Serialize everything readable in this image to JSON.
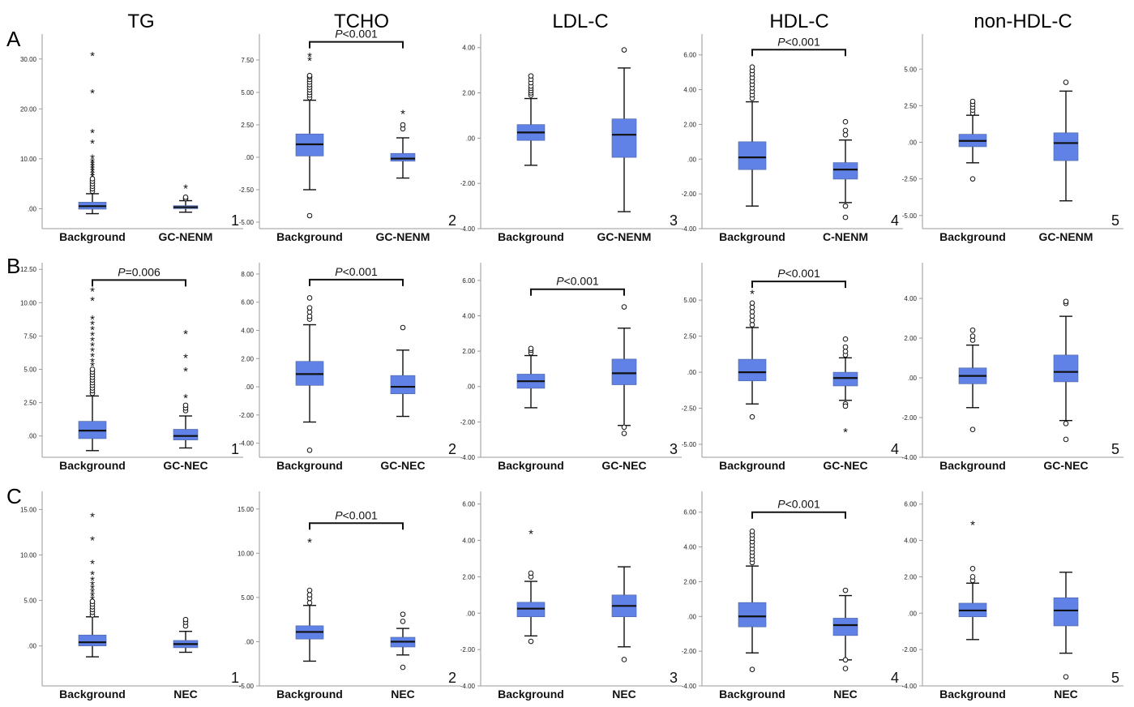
{
  "row_labels": [
    "A",
    "B",
    "C"
  ],
  "column_titles": [
    "TG",
    "TCHO",
    "LDL-C",
    "HDL-C",
    "non-HDL-C"
  ],
  "colors": {
    "box": "#6082e6",
    "box_edge": "#4a5f9c",
    "line": "#111111",
    "background": "#ffffff"
  },
  "chart_data": [
    {
      "type": "box",
      "panel_number": "1",
      "row": "A",
      "column": "TG",
      "ylim": [
        -4,
        35
      ],
      "yticks": [
        ".00",
        "10.00",
        "20.00",
        "30.00"
      ],
      "categories": [
        "Background",
        "GC-NENM"
      ],
      "series": [
        {
          "category": "Background",
          "q1": -0.1,
          "median": 0.5,
          "q3": 1.3,
          "whisker_low": -1.0,
          "whisker_high": 3.0,
          "outliers_circle": [
            3.5,
            4.0,
            4.5,
            5.0,
            5.5,
            6.0
          ],
          "outliers_star": [
            6.5,
            7.0,
            7.5,
            8.0,
            8.5,
            9.0,
            9.5,
            10.2,
            13.2,
            15.3,
            23.3,
            30.8
          ]
        },
        {
          "category": "GC-NENM",
          "q1": 0.0,
          "median": 0.3,
          "q3": 0.6,
          "whisker_low": -0.7,
          "whisker_high": 1.6,
          "outliers_circle": [
            2.0,
            2.3
          ],
          "outliers_star": [
            4.2
          ]
        }
      ],
      "significance": null
    },
    {
      "type": "box",
      "panel_number": "2",
      "row": "A",
      "column": "TCHO",
      "ylim": [
        -5.5,
        9.5
      ],
      "yticks": [
        "-5.00",
        "-2.50",
        ".00",
        "2.50",
        "5.00",
        "7.50"
      ],
      "categories": [
        "Background",
        "GC-NENM"
      ],
      "series": [
        {
          "category": "Background",
          "q1": 0.1,
          "median": 1.0,
          "q3": 1.8,
          "whisker_low": -2.5,
          "whisker_high": 4.4,
          "outliers_circle": [
            -4.5,
            4.6,
            4.8,
            5.0,
            5.2,
            5.4,
            5.6,
            5.8,
            6.0,
            6.2,
            6.3
          ],
          "outliers_star": [
            7.5,
            7.8
          ]
        },
        {
          "category": "GC-NENM",
          "q1": -0.3,
          "median": -0.1,
          "q3": 0.3,
          "whisker_low": -1.6,
          "whisker_high": 1.5,
          "outliers_circle": [
            2.2,
            2.5
          ],
          "outliers_star": [
            3.4
          ]
        }
      ],
      "significance": {
        "text": "P<0.001",
        "prefix": "P",
        "suffix": "<0.001",
        "y": 8.9,
        "from": 0,
        "to": 1
      }
    },
    {
      "type": "box",
      "panel_number": "3",
      "row": "A",
      "column": "LDL-C",
      "ylim": [
        -4,
        4.6
      ],
      "yticks": [
        "-4.00",
        "-2.00",
        ".00",
        "2.00",
        "4.00"
      ],
      "categories": [
        "Background",
        "GC-NENM"
      ],
      "series": [
        {
          "category": "Background",
          "q1": -0.1,
          "median": 0.25,
          "q3": 0.6,
          "whisker_low": -1.2,
          "whisker_high": 1.75,
          "outliers_circle": [
            1.9,
            2.0,
            2.1,
            2.2,
            2.3,
            2.45,
            2.6,
            2.75
          ],
          "outliers_star": []
        },
        {
          "category": "GC-NENM",
          "q1": -0.85,
          "median": 0.15,
          "q3": 0.85,
          "whisker_low": -3.25,
          "whisker_high": 3.1,
          "outliers_circle": [
            3.9
          ],
          "outliers_star": []
        }
      ],
      "significance": null
    },
    {
      "type": "box",
      "panel_number": "4",
      "row": "A",
      "column": "HDL-C",
      "ylim": [
        -4,
        7.2
      ],
      "yticks": [
        "-4.00",
        "-2.00",
        ".00",
        "2.00",
        "4.00",
        "6.00"
      ],
      "categories": [
        "Background",
        "C-NENM"
      ],
      "series": [
        {
          "category": "Background",
          "q1": -0.6,
          "median": 0.1,
          "q3": 1.0,
          "whisker_low": -2.7,
          "whisker_high": 3.3,
          "outliers_circle": [
            3.5,
            3.7,
            3.9,
            4.1,
            4.3,
            4.5,
            4.7,
            4.9,
            5.1,
            5.3
          ],
          "outliers_star": []
        },
        {
          "category": "C-NENM",
          "q1": -1.15,
          "median": -0.6,
          "q3": -0.2,
          "whisker_low": -2.5,
          "whisker_high": 1.1,
          "outliers_circle": [
            1.4,
            1.65,
            2.15,
            -2.7,
            -3.35
          ],
          "outliers_star": []
        }
      ],
      "significance": {
        "text": "P<0.001",
        "prefix": "P",
        "suffix": "<0.001",
        "y": 6.3,
        "from": 0,
        "to": 1
      }
    },
    {
      "type": "box",
      "panel_number": "5",
      "row": "A",
      "column": "non-HDL-C",
      "ylim": [
        -5.9,
        7.4
      ],
      "yticks": [
        "-5.00",
        "-2.50",
        ".00",
        "2.50",
        "5.00"
      ],
      "categories": [
        "Background",
        "GC-NENM"
      ],
      "series": [
        {
          "category": "Background",
          "q1": -0.3,
          "median": 0.1,
          "q3": 0.55,
          "whisker_low": -1.4,
          "whisker_high": 1.85,
          "outliers_circle": [
            2.0,
            2.2,
            2.4,
            2.6,
            2.8,
            -2.5
          ],
          "outliers_star": []
        },
        {
          "category": "GC-NENM",
          "q1": -1.25,
          "median": -0.05,
          "q3": 0.65,
          "whisker_low": -4.0,
          "whisker_high": 3.5,
          "outliers_circle": [
            4.1
          ],
          "outliers_star": []
        }
      ],
      "significance": null
    },
    {
      "type": "box",
      "panel_number": "1",
      "row": "B",
      "column": "TG",
      "ylim": [
        -1.6,
        13.0
      ],
      "yticks": [
        ".00",
        "2.50",
        "5.00",
        "7.50",
        "10.00",
        "12.50"
      ],
      "categories": [
        "Background",
        "GC-NEC"
      ],
      "series": [
        {
          "category": "Background",
          "q1": -0.2,
          "median": 0.4,
          "q3": 1.1,
          "whisker_low": -1.1,
          "whisker_high": 3.0,
          "outliers_circle": [
            3.2,
            3.4,
            3.6,
            3.8,
            4.0,
            4.2,
            4.4,
            4.6,
            4.8,
            5.0
          ],
          "outliers_star": [
            5.3,
            5.6,
            6.0,
            6.4,
            6.8,
            7.2,
            7.6,
            8.0,
            8.4,
            8.8,
            10.2,
            10.9
          ]
        },
        {
          "category": "GC-NEC",
          "q1": -0.3,
          "median": 0.0,
          "q3": 0.5,
          "whisker_low": -0.9,
          "whisker_high": 1.5,
          "outliers_circle": [
            1.9,
            2.1,
            2.3
          ],
          "outliers_star": [
            2.9,
            4.9,
            5.9,
            7.7
          ]
        }
      ],
      "significance": {
        "text": "P=0.006",
        "prefix": "P",
        "suffix": "=0.006",
        "y": 11.7,
        "from": 0,
        "to": 1
      }
    },
    {
      "type": "box",
      "panel_number": "2",
      "row": "B",
      "column": "TCHO",
      "ylim": [
        -5.0,
        8.8
      ],
      "yticks": [
        "-4.00",
        "-2.00",
        ".00",
        "2.00",
        "4.00",
        "6.00",
        "8.00"
      ],
      "categories": [
        "Background",
        "GC-NEC"
      ],
      "series": [
        {
          "category": "Background",
          "q1": 0.1,
          "median": 0.9,
          "q3": 1.8,
          "whisker_low": -2.5,
          "whisker_high": 4.4,
          "outliers_circle": [
            -4.5,
            4.8,
            5.0,
            5.3,
            5.6,
            6.3
          ],
          "outliers_star": []
        },
        {
          "category": "GC-NEC",
          "q1": -0.5,
          "median": 0.0,
          "q3": 0.8,
          "whisker_low": -2.1,
          "whisker_high": 2.6,
          "outliers_circle": [
            4.2
          ],
          "outliers_star": []
        }
      ],
      "significance": {
        "text": "P<0.001",
        "prefix": "P",
        "suffix": "<0.001",
        "y": 7.6,
        "from": 0,
        "to": 1
      }
    },
    {
      "type": "box",
      "panel_number": "3",
      "row": "B",
      "column": "LDL-C",
      "ylim": [
        -4.0,
        7.0
      ],
      "yticks": [
        "-4.00",
        "-2.00",
        ".00",
        "2.00",
        "4.00",
        "6.00"
      ],
      "categories": [
        "Background",
        "GC-NEC"
      ],
      "series": [
        {
          "category": "Background",
          "q1": -0.1,
          "median": 0.3,
          "q3": 0.7,
          "whisker_low": -1.2,
          "whisker_high": 1.75,
          "outliers_circle": [
            1.9,
            2.05,
            2.15
          ],
          "outliers_star": []
        },
        {
          "category": "GC-NEC",
          "q1": 0.1,
          "median": 0.75,
          "q3": 1.55,
          "whisker_low": -2.2,
          "whisker_high": 3.3,
          "outliers_circle": [
            -2.3,
            -2.65,
            4.5
          ],
          "outliers_star": []
        }
      ],
      "significance": {
        "text": "P<0.001",
        "prefix": "P",
        "suffix": "<0.001",
        "y": 5.5,
        "from": 0,
        "to": 1
      }
    },
    {
      "type": "box",
      "panel_number": "4",
      "row": "B",
      "column": "HDL-C",
      "ylim": [
        -5.9,
        7.6
      ],
      "yticks": [
        "-5.00",
        "-2.50",
        ".00",
        "2.50",
        "5.00"
      ],
      "categories": [
        "Background",
        "GC-NEC"
      ],
      "series": [
        {
          "category": "Background",
          "q1": -0.6,
          "median": 0.0,
          "q3": 0.9,
          "whisker_low": -2.2,
          "whisker_high": 3.1,
          "outliers_circle": [
            -3.1,
            3.3,
            3.6,
            3.9,
            4.2,
            4.5,
            4.8
          ],
          "outliers_star": [
            5.5
          ]
        },
        {
          "category": "GC-NEC",
          "q1": -0.95,
          "median": -0.4,
          "q3": 0.0,
          "whisker_low": -1.95,
          "whisker_high": 1.0,
          "outliers_circle": [
            1.2,
            1.45,
            1.75,
            2.3,
            -2.2,
            -2.35
          ],
          "outliers_star": [
            -4.1
          ]
        }
      ],
      "significance": {
        "text": "P<0.001",
        "prefix": "P",
        "suffix": "<0.001",
        "y": 6.3,
        "from": 0,
        "to": 1
      }
    },
    {
      "type": "box",
      "panel_number": "5",
      "row": "B",
      "column": "non-HDL-C",
      "ylim": [
        -4.0,
        5.8
      ],
      "yticks": [
        "-4.00",
        "-2.00",
        ".00",
        "2.00",
        "4.00"
      ],
      "categories": [
        "Background",
        "GC-NEC"
      ],
      "series": [
        {
          "category": "Background",
          "q1": -0.3,
          "median": 0.1,
          "q3": 0.5,
          "whisker_low": -1.5,
          "whisker_high": 1.65,
          "outliers_circle": [
            1.9,
            2.1,
            2.4,
            -2.6
          ],
          "outliers_star": []
        },
        {
          "category": "GC-NEC",
          "q1": -0.2,
          "median": 0.3,
          "q3": 1.15,
          "whisker_low": -2.15,
          "whisker_high": 3.1,
          "outliers_circle": [
            -2.3,
            -3.1,
            3.75,
            3.85
          ],
          "outliers_star": []
        }
      ],
      "significance": null
    },
    {
      "type": "box",
      "panel_number": "1",
      "row": "C",
      "column": "TG",
      "ylim": [
        -4.4,
        17.0
      ],
      "yticks": [
        ".00",
        "5.00",
        "10.00",
        "15.00"
      ],
      "categories": [
        "Background",
        "NEC"
      ],
      "series": [
        {
          "category": "Background",
          "q1": 0.0,
          "median": 0.4,
          "q3": 1.2,
          "whisker_low": -1.2,
          "whisker_high": 3.2,
          "outliers_circle": [
            3.4,
            3.7,
            4.0,
            4.3,
            4.6,
            4.9
          ],
          "outliers_star": [
            5.2,
            5.6,
            6.0,
            6.4,
            6.8,
            7.3,
            7.9,
            9.1,
            11.7,
            14.3
          ]
        },
        {
          "category": "NEC",
          "q1": -0.2,
          "median": 0.2,
          "q3": 0.6,
          "whisker_low": -0.7,
          "whisker_high": 1.6,
          "outliers_circle": [
            2.2,
            2.6,
            2.9
          ],
          "outliers_star": []
        }
      ],
      "significance": null
    },
    {
      "type": "box",
      "panel_number": "2",
      "row": "C",
      "column": "TCHO",
      "ylim": [
        -5.0,
        17.0
      ],
      "yticks": [
        "-5.00",
        ".00",
        "5.00",
        "10.00",
        "15.00"
      ],
      "categories": [
        "Background",
        "NEC"
      ],
      "series": [
        {
          "category": "Background",
          "q1": 0.3,
          "median": 1.1,
          "q3": 1.8,
          "whisker_low": -2.2,
          "whisker_high": 4.1,
          "outliers_circle": [
            4.4,
            4.9,
            5.3,
            5.8
          ],
          "outliers_star": [
            11.3
          ]
        },
        {
          "category": "NEC",
          "q1": -0.6,
          "median": 0.0,
          "q3": 0.5,
          "whisker_low": -1.5,
          "whisker_high": 1.5,
          "outliers_circle": [
            2.3,
            3.1,
            -2.9
          ],
          "outliers_star": []
        }
      ],
      "significance": {
        "text": "P<0.001",
        "prefix": "P",
        "suffix": "<0.001",
        "y": 13.4,
        "from": 0,
        "to": 1
      }
    },
    {
      "type": "box",
      "panel_number": "3",
      "row": "C",
      "column": "LDL-C",
      "ylim": [
        -4.0,
        6.7
      ],
      "yticks": [
        "-4.00",
        "-2.00",
        ".00",
        "2.00",
        "4.00",
        "6.00"
      ],
      "categories": [
        "Background",
        "NEC"
      ],
      "series": [
        {
          "category": "Background",
          "q1": -0.2,
          "median": 0.25,
          "q3": 0.6,
          "whisker_low": -1.25,
          "whisker_high": 1.75,
          "outliers_circle": [
            2.0,
            2.2,
            -1.55
          ],
          "outliers_star": [
            4.4
          ]
        },
        {
          "category": "NEC",
          "q1": -0.2,
          "median": 0.4,
          "q3": 1.0,
          "whisker_low": -1.85,
          "whisker_high": 2.55,
          "outliers_circle": [
            -2.55
          ],
          "outliers_star": []
        }
      ],
      "significance": null
    },
    {
      "type": "box",
      "panel_number": "4",
      "row": "C",
      "column": "HDL-C",
      "ylim": [
        -4.0,
        7.2
      ],
      "yticks": [
        "-4.00",
        "-2.00",
        ".00",
        "2.00",
        "4.00",
        "6.00"
      ],
      "categories": [
        "Background",
        "NEC"
      ],
      "series": [
        {
          "category": "Background",
          "q1": -0.6,
          "median": 0.0,
          "q3": 0.8,
          "whisker_low": -2.1,
          "whisker_high": 2.9,
          "outliers_circle": [
            -3.05,
            3.1,
            3.3,
            3.5,
            3.7,
            3.9,
            4.1,
            4.3,
            4.5,
            4.7,
            4.9
          ],
          "outliers_star": []
        },
        {
          "category": "NEC",
          "q1": -1.1,
          "median": -0.5,
          "q3": -0.1,
          "whisker_low": -2.5,
          "whisker_high": 1.2,
          "outliers_circle": [
            1.5,
            -2.5,
            -3.0
          ],
          "outliers_star": []
        }
      ],
      "significance": {
        "text": "P<0.001",
        "prefix": "P",
        "suffix": "<0.001",
        "y": 6.0,
        "from": 0,
        "to": 1
      }
    },
    {
      "type": "box",
      "panel_number": "5",
      "row": "C",
      "column": "non-HDL-C",
      "ylim": [
        -4.0,
        6.7
      ],
      "yticks": [
        "-4.00",
        "-2.00",
        ".00",
        "2.00",
        "4.00",
        "6.00"
      ],
      "categories": [
        "Background",
        "NEC"
      ],
      "series": [
        {
          "category": "Background",
          "q1": -0.2,
          "median": 0.15,
          "q3": 0.55,
          "whisker_low": -1.45,
          "whisker_high": 1.65,
          "outliers_circle": [
            1.8,
            2.0,
            2.45
          ],
          "outliers_star": [
            4.9
          ]
        },
        {
          "category": "NEC",
          "q1": -0.7,
          "median": 0.15,
          "q3": 0.85,
          "whisker_low": -2.2,
          "whisker_high": 2.25,
          "outliers_circle": [
            -3.5
          ],
          "outliers_star": []
        }
      ],
      "significance": null
    }
  ]
}
